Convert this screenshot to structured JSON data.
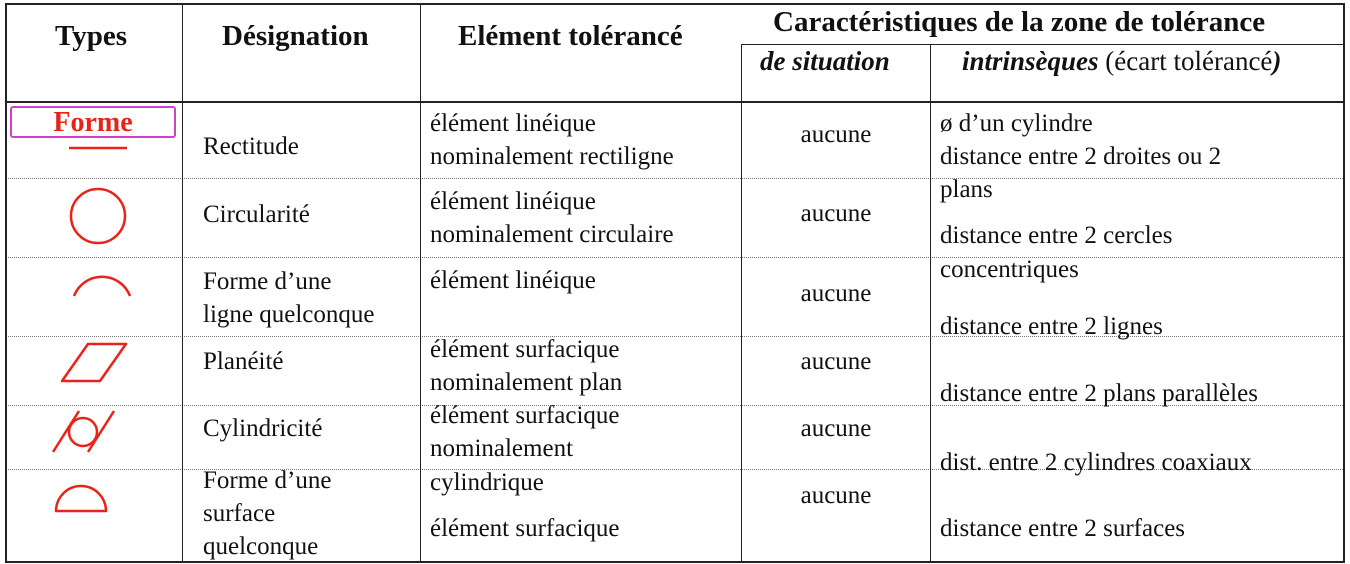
{
  "header": {
    "types": "Types",
    "designation": "Désignation",
    "element": "Elément tolérancé",
    "caracteristiques": "Caractéristiques de la zone de tolérance",
    "situation": "de situation",
    "intrinseques": "intrinsèques",
    "intrinseques_note": "(écart tolérancé",
    "intrinseques_paren": ")"
  },
  "forme_label": "Forme",
  "colors": {
    "symbol": "#e8231a",
    "highlight": "#d040c8",
    "line": "#222222"
  },
  "rows": [
    {
      "symbol": "straight-line-icon",
      "designation": [
        "Rectitude"
      ],
      "element": [
        "élément linéique",
        "nominalement rectiligne"
      ],
      "situation": "aucune"
    },
    {
      "symbol": "circle-icon",
      "designation": [
        "Circularité"
      ],
      "element": [
        "élément linéique",
        "nominalement circulaire"
      ],
      "situation": "aucune"
    },
    {
      "symbol": "arc-icon",
      "designation": [
        "Forme d’une",
        "ligne quelconque"
      ],
      "element": [
        "élément linéique"
      ],
      "situation": "aucune"
    },
    {
      "symbol": "parallelogram-icon",
      "designation": [
        "Planéité"
      ],
      "element": [
        "élément surfacique",
        "nominalement plan"
      ],
      "situation": "aucune"
    },
    {
      "symbol": "cylinder-icon",
      "designation": [
        "Cylindricité"
      ],
      "element": [
        "élément surfacique",
        "nominalement"
      ],
      "situation": "aucune"
    },
    {
      "symbol": "half-disk-icon",
      "designation": [
        "Forme d’une",
        "surface",
        "quelconque"
      ],
      "element": [
        "cylindrique",
        "élément surfacique"
      ],
      "situation": "aucune"
    }
  ],
  "intrinsic_lines": [
    "ø d’un cylindre",
    "distance entre 2 droites ou 2",
    "plans",
    "distance entre 2 cercles",
    "concentriques",
    "distance entre 2 lignes",
    "distance entre 2 plans parallèles",
    "dist. entre 2 cylindres coaxiaux",
    "distance entre 2 surfaces"
  ]
}
